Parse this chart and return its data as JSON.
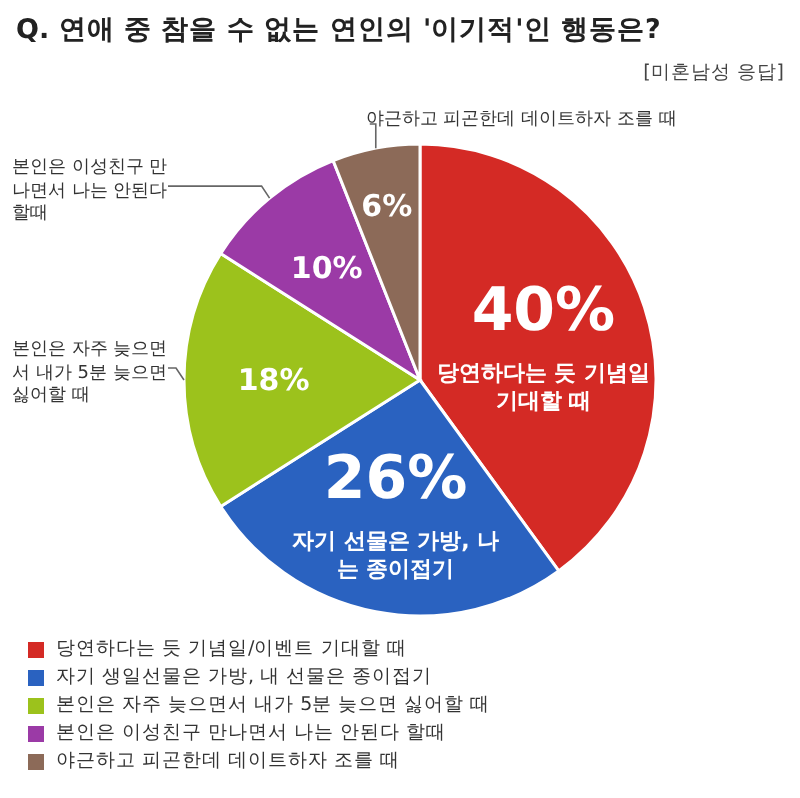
{
  "chart_data": {
    "type": "pie",
    "title": "Q. 연애 중 참을 수 없는 연인의 '이기적'인 행동은?",
    "subtitle": "[미혼남성 응답]",
    "categories": [
      "당연하다는 듯 기념일/이벤트 기대할 때",
      "자기 생일선물은 가방, 내 선물은 종이접기",
      "본인은 자주 늦으면서 내가 5분 늦으면 싫어할 때",
      "본인은 이성친구 만나면서 나는 안된다 할때",
      "야근하고 피곤한데 데이트하자 조를 때"
    ],
    "values": [
      40,
      26,
      18,
      10,
      6
    ],
    "colors": [
      "#d42a25",
      "#2a62c0",
      "#9cc21c",
      "#9b3aa6",
      "#8c6a58"
    ],
    "value_labels": [
      "40%",
      "26%",
      "18%",
      "10%",
      "6%"
    ],
    "legend": "bottom",
    "annotations": [
      "당연하다는 듯 기념일 기대할 때",
      "자기 선물은 가방, 나는 종이접기",
      "본인은 자주 늦으면서 내가 5분 늦으면 싫어할 때",
      "본인은 이성친구 만나면서 나는 안된다 할때",
      "야근하고 피곤한데 데이트하자 조를 때"
    ]
  }
}
